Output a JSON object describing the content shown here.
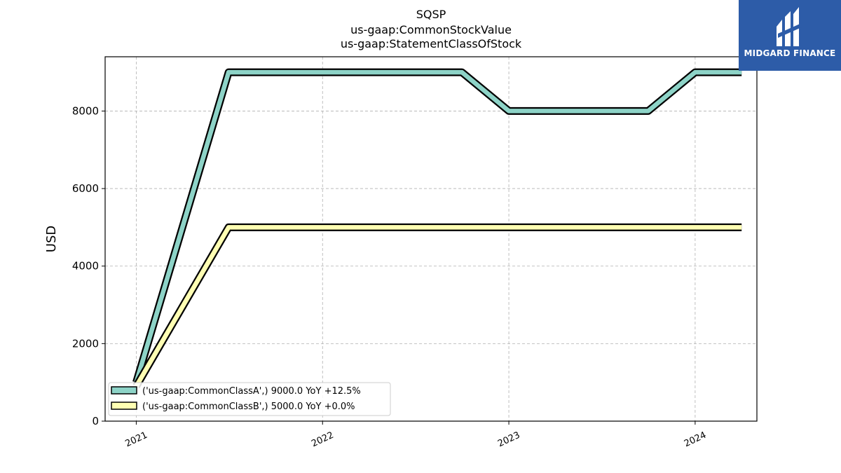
{
  "brand": {
    "name": "MIDGARD FINANCE",
    "bg_color": "#2d5ca8"
  },
  "chart_data": {
    "type": "line",
    "title_lines": [
      "SQSP",
      "us-gaap:CommonStockValue",
      "us-gaap:StatementClassOfStock"
    ],
    "xlabel": "",
    "ylabel": "USD",
    "ylim": [
      0,
      9400
    ],
    "xlim": [
      "2020-11-01",
      "2024-05-01"
    ],
    "yticks": [
      0,
      2000,
      4000,
      6000,
      8000
    ],
    "xticks": [
      {
        "date": "2021-01-01",
        "label": "2021"
      },
      {
        "date": "2022-01-01",
        "label": "2022"
      },
      {
        "date": "2023-01-01",
        "label": "2023"
      },
      {
        "date": "2024-01-01",
        "label": "2024"
      }
    ],
    "grid": true,
    "legend_position": "lower-left",
    "series": [
      {
        "name": "('us-gaap:CommonClassA',) 9000.0 YoY +12.5%",
        "color": "#8dd3c7",
        "points": [
          {
            "x": "2021-01-01",
            "y": 1000
          },
          {
            "x": "2021-07-01",
            "y": 9000
          },
          {
            "x": "2022-10-01",
            "y": 9000
          },
          {
            "x": "2023-01-01",
            "y": 8000
          },
          {
            "x": "2023-10-01",
            "y": 8000
          },
          {
            "x": "2024-01-01",
            "y": 9000
          },
          {
            "x": "2024-04-01",
            "y": 9000
          }
        ]
      },
      {
        "name": "('us-gaap:CommonClassB',) 5000.0 YoY +0.0%",
        "color": "#ffffb3",
        "points": [
          {
            "x": "2021-01-01",
            "y": 900
          },
          {
            "x": "2021-07-01",
            "y": 5000
          },
          {
            "x": "2024-04-01",
            "y": 5000
          }
        ]
      }
    ]
  }
}
